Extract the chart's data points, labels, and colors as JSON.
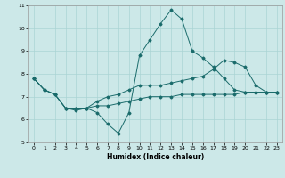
{
  "title": "",
  "xlabel": "Humidex (Indice chaleur)",
  "bg_color": "#cce8e8",
  "grid_color": "#aad4d4",
  "line_color": "#1a6b6b",
  "xlim": [
    -0.5,
    23.5
  ],
  "ylim": [
    5,
    11
  ],
  "xticks": [
    0,
    1,
    2,
    3,
    4,
    5,
    6,
    7,
    8,
    9,
    10,
    11,
    12,
    13,
    14,
    15,
    16,
    17,
    18,
    19,
    20,
    21,
    22,
    23
  ],
  "yticks": [
    5,
    6,
    7,
    8,
    9,
    10,
    11
  ],
  "line1_x": [
    0,
    1,
    2,
    3,
    4,
    5,
    6,
    7,
    8,
    9,
    10,
    11,
    12,
    13,
    14,
    15,
    16,
    17,
    18,
    19,
    20,
    21,
    22,
    23
  ],
  "line1_y": [
    7.8,
    7.3,
    7.1,
    6.5,
    6.4,
    6.5,
    6.3,
    5.8,
    5.4,
    6.3,
    8.8,
    9.5,
    10.2,
    10.8,
    10.4,
    9.0,
    8.7,
    8.3,
    7.8,
    7.3,
    7.2,
    7.2,
    7.2,
    7.2
  ],
  "line2_x": [
    0,
    1,
    2,
    3,
    4,
    5,
    6,
    7,
    8,
    9,
    10,
    11,
    12,
    13,
    14,
    15,
    16,
    17,
    18,
    19,
    20,
    21,
    22,
    23
  ],
  "line2_y": [
    7.8,
    7.3,
    7.1,
    6.5,
    6.5,
    6.5,
    6.8,
    7.0,
    7.1,
    7.3,
    7.5,
    7.5,
    7.5,
    7.6,
    7.7,
    7.8,
    7.9,
    8.2,
    8.6,
    8.5,
    8.3,
    7.5,
    7.2,
    7.2
  ],
  "line3_x": [
    0,
    1,
    2,
    3,
    4,
    5,
    6,
    7,
    8,
    9,
    10,
    11,
    12,
    13,
    14,
    15,
    16,
    17,
    18,
    19,
    20,
    21,
    22,
    23
  ],
  "line3_y": [
    7.8,
    7.3,
    7.1,
    6.5,
    6.5,
    6.5,
    6.6,
    6.6,
    6.7,
    6.8,
    6.9,
    7.0,
    7.0,
    7.0,
    7.1,
    7.1,
    7.1,
    7.1,
    7.1,
    7.1,
    7.2,
    7.2,
    7.2,
    7.2
  ]
}
